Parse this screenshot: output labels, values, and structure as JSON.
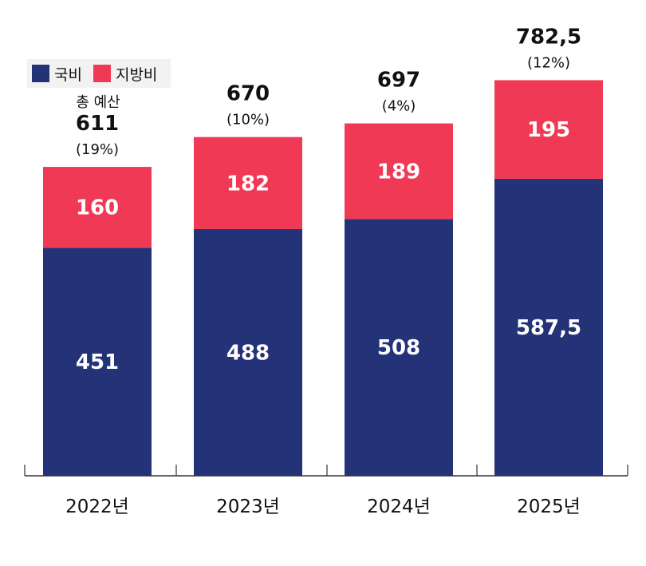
{
  "legend": {
    "national": "국비",
    "local": "지방비"
  },
  "total_caption": "총 예산",
  "colors": {
    "national": "#243277",
    "local": "#f03a55",
    "axis": "#333333",
    "bar_label": "#ffffff",
    "text": "#111111"
  },
  "chart_data": {
    "type": "bar",
    "stacked": true,
    "categories": [
      "2022년",
      "2023년",
      "2024년",
      "2025년"
    ],
    "series": [
      {
        "name": "국비",
        "values": [
          451,
          488,
          508,
          587.5
        ],
        "labels": [
          "451",
          "488",
          "508",
          "587,5"
        ]
      },
      {
        "name": "지방비",
        "values": [
          160,
          182,
          189,
          195
        ],
        "labels": [
          "160",
          "182",
          "189",
          "195"
        ]
      }
    ],
    "totals": [
      611,
      670,
      697,
      782.5
    ],
    "total_labels": [
      "611",
      "670",
      "697",
      "782,5"
    ],
    "growth_labels": [
      "(19%)",
      "(10%)",
      "(4%)",
      "(12%)"
    ],
    "legend_position": "top-left",
    "grid": false
  }
}
